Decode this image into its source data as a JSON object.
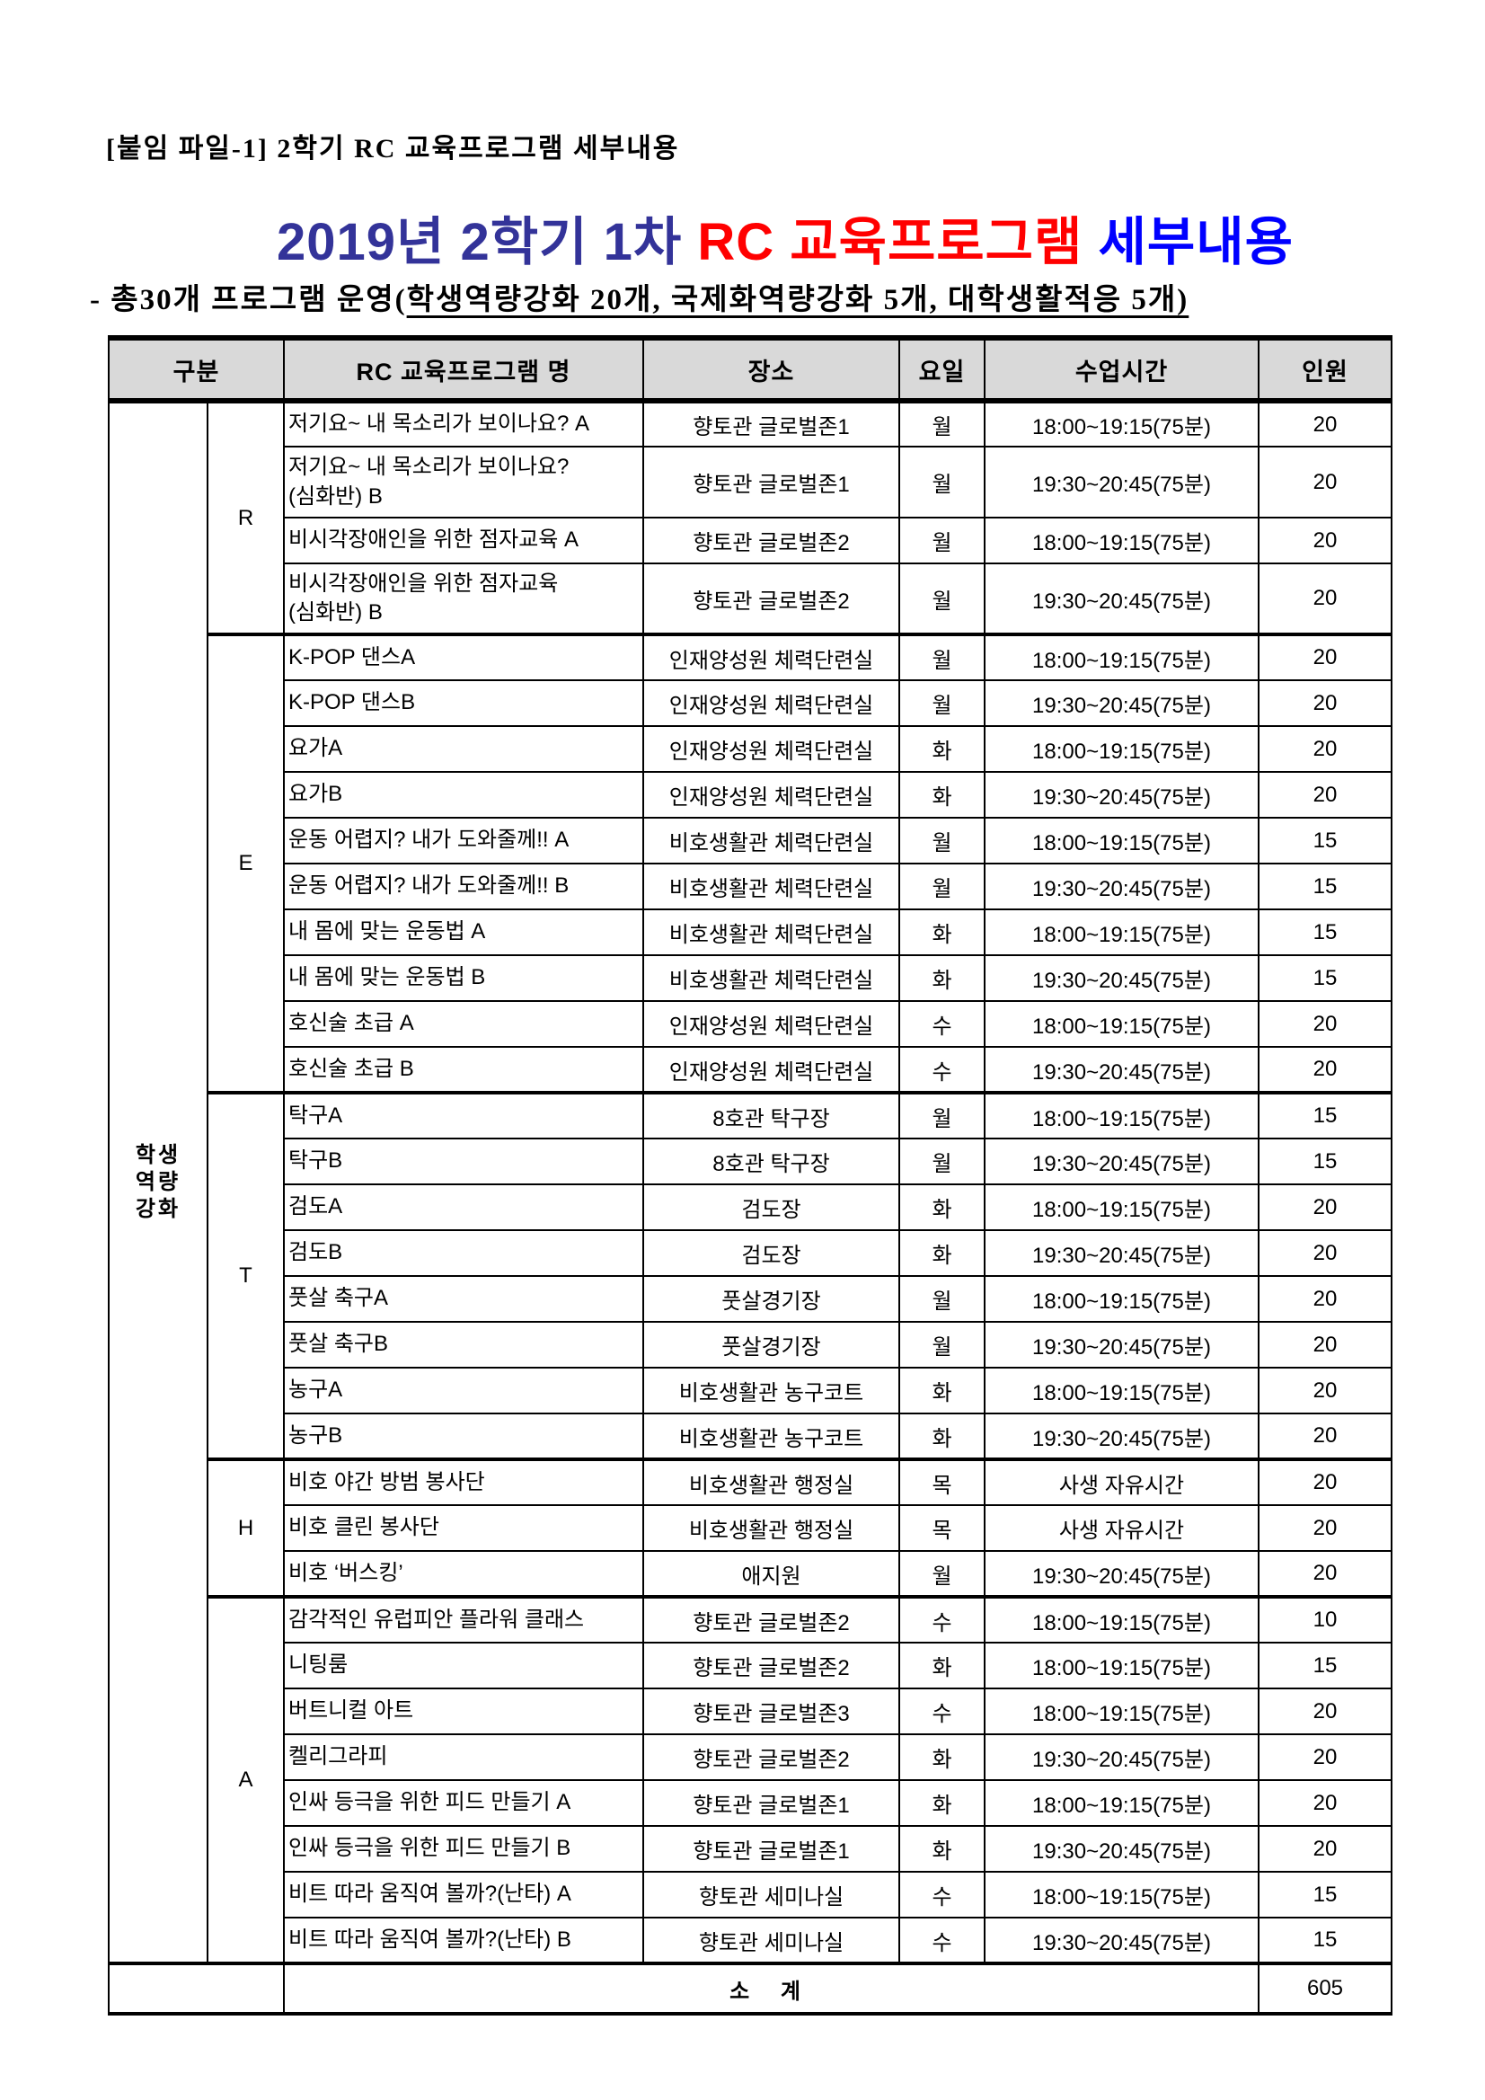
{
  "page": {
    "attachment_label": "[붙임 파일-1] 2학기 RC 교육프로그램 세부내용",
    "title": {
      "part1": "2019년 2학기 1차 ",
      "part2": "RC 교육프로그램 ",
      "part3": "세부내용"
    },
    "subtitle": {
      "prefix": "- 총30개 프로그램 운영(",
      "underlined": "학생역량강화 20개, 국제화역량강화 5개, 대학생활적응 5개)"
    }
  },
  "colors": {
    "title_navy": "#333399",
    "title_red": "#ff0000",
    "title_blue": "#0000ff",
    "header_bg": "#d9d9d9",
    "subtotal_bg": "#ffff00",
    "border": "#000000"
  },
  "table": {
    "headers": [
      "구분",
      "RC 교육프로그램 명",
      "장소",
      "요일",
      "수업시간",
      "인원"
    ],
    "group_label_lines": [
      "학생",
      "역량",
      "강화"
    ],
    "sections": [
      {
        "letter": "R",
        "rows": [
          {
            "name": "저기요~ 내 목소리가 보이나요? A",
            "place": "향토관 글로벌존1",
            "day": "월",
            "time": "18:00~19:15(75분)",
            "capacity": "20"
          },
          {
            "name": "저기요~ 내 목소리가 보이나요?\n(심화반) B",
            "place": "향토관 글로벌존1",
            "day": "월",
            "time": "19:30~20:45(75분)",
            "capacity": "20",
            "tall": true
          },
          {
            "name": "비시각장애인을 위한 점자교육 A",
            "place": "향토관 글로벌존2",
            "day": "월",
            "time": "18:00~19:15(75분)",
            "capacity": "20"
          },
          {
            "name": "비시각장애인을 위한 점자교육\n(심화반) B",
            "place": "향토관 글로벌존2",
            "day": "월",
            "time": "19:30~20:45(75분)",
            "capacity": "20",
            "tall": true
          }
        ]
      },
      {
        "letter": "E",
        "rows": [
          {
            "name": "K-POP 댄스A",
            "place": "인재양성원 체력단련실",
            "day": "월",
            "time": "18:00~19:15(75분)",
            "capacity": "20"
          },
          {
            "name": "K-POP 댄스B",
            "place": "인재양성원 체력단련실",
            "day": "월",
            "time": "19:30~20:45(75분)",
            "capacity": "20"
          },
          {
            "name": "요가A",
            "place": "인재양성원 체력단련실",
            "day": "화",
            "time": "18:00~19:15(75분)",
            "capacity": "20"
          },
          {
            "name": "요가B",
            "place": "인재양성원 체력단련실",
            "day": "화",
            "time": "19:30~20:45(75분)",
            "capacity": "20"
          },
          {
            "name": "운동 어렵지? 내가 도와줄께!! A",
            "place": "비호생활관 체력단련실",
            "day": "월",
            "time": "18:00~19:15(75분)",
            "capacity": "15"
          },
          {
            "name": "운동 어렵지? 내가 도와줄께!! B",
            "place": "비호생활관 체력단련실",
            "day": "월",
            "time": "19:30~20:45(75분)",
            "capacity": "15"
          },
          {
            "name": "내 몸에 맞는 운동법 A",
            "place": "비호생활관 체력단련실",
            "day": "화",
            "time": "18:00~19:15(75분)",
            "capacity": "15"
          },
          {
            "name": "내 몸에 맞는 운동법 B",
            "place": "비호생활관 체력단련실",
            "day": "화",
            "time": "19:30~20:45(75분)",
            "capacity": "15"
          },
          {
            "name": "호신술 초급 A",
            "place": "인재양성원 체력단련실",
            "day": "수",
            "time": "18:00~19:15(75분)",
            "capacity": "20"
          },
          {
            "name": "호신술 초급 B",
            "place": "인재양성원 체력단련실",
            "day": "수",
            "time": "19:30~20:45(75분)",
            "capacity": "20"
          }
        ]
      },
      {
        "letter": "T",
        "rows": [
          {
            "name": "탁구A",
            "place": "8호관 탁구장",
            "day": "월",
            "time": "18:00~19:15(75분)",
            "capacity": "15"
          },
          {
            "name": "탁구B",
            "place": "8호관 탁구장",
            "day": "월",
            "time": "19:30~20:45(75분)",
            "capacity": "15"
          },
          {
            "name": "검도A",
            "place": "검도장",
            "day": "화",
            "time": "18:00~19:15(75분)",
            "capacity": "20"
          },
          {
            "name": "검도B",
            "place": "검도장",
            "day": "화",
            "time": "19:30~20:45(75분)",
            "capacity": "20"
          },
          {
            "name": "풋살 축구A",
            "place": "풋살경기장",
            "day": "월",
            "time": "18:00~19:15(75분)",
            "capacity": "20"
          },
          {
            "name": "풋살 축구B",
            "place": "풋살경기장",
            "day": "월",
            "time": "19:30~20:45(75분)",
            "capacity": "20"
          },
          {
            "name": "농구A",
            "place": "비호생활관 농구코트",
            "day": "화",
            "time": "18:00~19:15(75분)",
            "capacity": "20"
          },
          {
            "name": "농구B",
            "place": "비호생활관 농구코트",
            "day": "화",
            "time": "19:30~20:45(75분)",
            "capacity": "20"
          }
        ]
      },
      {
        "letter": "H",
        "rows": [
          {
            "name": "비호 야간 방범 봉사단",
            "place": "비호생활관 행정실",
            "day": "목",
            "time": "사생 자유시간",
            "capacity": "20"
          },
          {
            "name": "비호 클린 봉사단",
            "place": "비호생활관 행정실",
            "day": "목",
            "time": "사생 자유시간",
            "capacity": "20"
          },
          {
            "name": "비호 ‘버스킹’",
            "place": "애지원",
            "day": "월",
            "time": "19:30~20:45(75분)",
            "capacity": "20"
          }
        ]
      },
      {
        "letter": "A",
        "rows": [
          {
            "name": "감각적인 유럽피안 플라워 클래스",
            "place": "향토관 글로벌존2",
            "day": "수",
            "time": "18:00~19:15(75분)",
            "capacity": "10"
          },
          {
            "name": "니팅룸",
            "place": "향토관 글로벌존2",
            "day": "화",
            "time": "18:00~19:15(75분)",
            "capacity": "15"
          },
          {
            "name": "버트니컬 아트",
            "place": "향토관 글로벌존3",
            "day": "수",
            "time": "18:00~19:15(75분)",
            "capacity": "20"
          },
          {
            "name": "켈리그라피",
            "place": "향토관 글로벌존2",
            "day": "화",
            "time": "19:30~20:45(75분)",
            "capacity": "20"
          },
          {
            "name": "인싸 등극을 위한 피드 만들기 A",
            "place": "향토관 글로벌존1",
            "day": "화",
            "time": "18:00~19:15(75분)",
            "capacity": "20"
          },
          {
            "name": "인싸 등극을 위한 피드 만들기 B",
            "place": "향토관 글로벌존1",
            "day": "화",
            "time": "19:30~20:45(75분)",
            "capacity": "20"
          },
          {
            "name": "비트 따라 움직여 볼까?(난타) A",
            "place": "향토관 세미나실",
            "day": "수",
            "time": "18:00~19:15(75분)",
            "capacity": "15"
          },
          {
            "name": "비트 따라 움직여 볼까?(난타) B",
            "place": "향토관 세미나실",
            "day": "수",
            "time": "19:30~20:45(75분)",
            "capacity": "15"
          }
        ]
      }
    ],
    "subtotal": {
      "label": "소 계",
      "value": "605"
    }
  }
}
